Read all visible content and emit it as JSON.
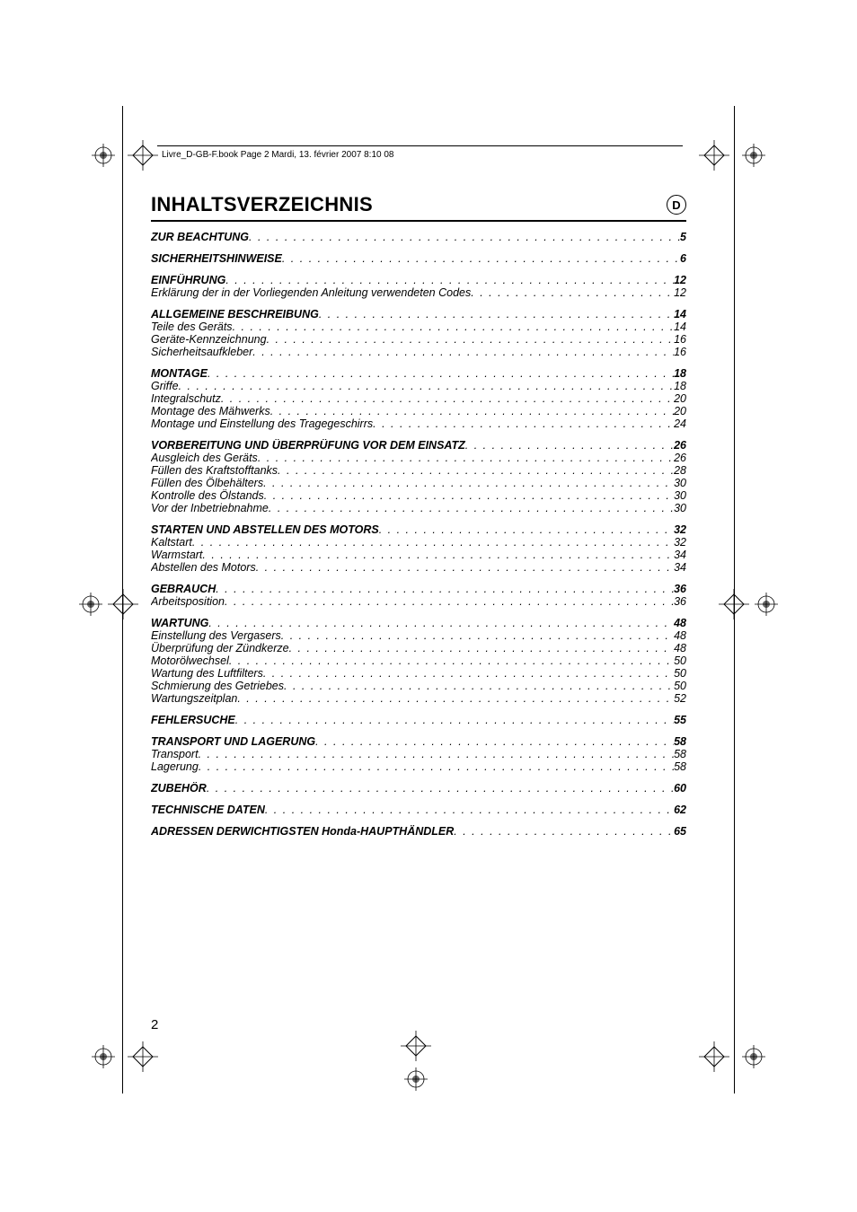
{
  "header": "Livre_D-GB-F.book  Page 2  Mardi, 13. février 2007  8:10 08",
  "title": "INHALTSVERZEICHNIS",
  "lang_code": "D",
  "page_number": "2",
  "toc": [
    {
      "heading": "ZUR BEACHTUNG",
      "page": "5",
      "subs": []
    },
    {
      "heading": "SICHERHEITSHINWEISE",
      "page": "6",
      "subs": []
    },
    {
      "heading": "EINFÜHRUNG",
      "page": "12",
      "subs": [
        {
          "label": "Erklärung der in der Vorliegenden Anleitung verwendeten Codes",
          "page": "12"
        }
      ]
    },
    {
      "heading": "ALLGEMEINE BESCHREIBUNG",
      "page": "14",
      "subs": [
        {
          "label": "Teile des Geräts",
          "page": "14"
        },
        {
          "label": "Geräte-Kennzeichnung",
          "page": "16"
        },
        {
          "label": "Sicherheitsaufkleber",
          "page": "16"
        }
      ]
    },
    {
      "heading": "MONTAGE",
      "page": "18",
      "subs": [
        {
          "label": "Griffe",
          "page": "18"
        },
        {
          "label": "Integralschutz",
          "page": "20"
        },
        {
          "label": "Montage des Mähwerks",
          "page": "20"
        },
        {
          "label": "Montage und Einstellung des Tragegeschirrs",
          "page": "24"
        }
      ]
    },
    {
      "heading": "VORBEREITUNG UND ÜBERPRÜFUNG VOR DEM EINSATZ",
      "page": "26",
      "subs": [
        {
          "label": "Ausgleich des Geräts",
          "page": "26"
        },
        {
          "label": "Füllen des Kraftstofftanks",
          "page": "28"
        },
        {
          "label": "Füllen des Ölbehälters",
          "page": "30"
        },
        {
          "label": "Kontrolle des Ölstands",
          "page": "30"
        },
        {
          "label": "Vor der Inbetriebnahme",
          "page": "30"
        }
      ]
    },
    {
      "heading": "STARTEN UND ABSTELLEN DES MOTORS",
      "page": "32",
      "subs": [
        {
          "label": "Kaltstart",
          "page": "32"
        },
        {
          "label": "Warmstart",
          "page": "34"
        },
        {
          "label": "Abstellen des Motors",
          "page": "34"
        }
      ]
    },
    {
      "heading": "GEBRAUCH",
      "page": "36",
      "subs": [
        {
          "label": "Arbeitsposition",
          "page": "36"
        }
      ]
    },
    {
      "heading": "WARTUNG",
      "page": "48",
      "subs": [
        {
          "label": "Einstellung des Vergasers",
          "page": "48"
        },
        {
          "label": "Überprüfung der Zündkerze",
          "page": "48"
        },
        {
          "label": "Motorölwechsel",
          "page": "50"
        },
        {
          "label": "Wartung des Luftfilters",
          "page": "50"
        },
        {
          "label": "Schmierung des Getriebes",
          "page": "50"
        },
        {
          "label": "Wartungszeitplan",
          "page": "52"
        }
      ]
    },
    {
      "heading": "FEHLERSUCHE",
      "page": "55",
      "subs": []
    },
    {
      "heading": "TRANSPORT UND LAGERUNG",
      "page": "58",
      "subs": [
        {
          "label": "Transport",
          "page": "58"
        },
        {
          "label": "Lagerung",
          "page": "58"
        }
      ]
    },
    {
      "heading": "ZUBEHÖR",
      "page": "60",
      "subs": []
    },
    {
      "heading": "TECHNISCHE DATEN",
      "page": "62",
      "subs": []
    },
    {
      "heading": "ADRESSEN DERWICHTIGSTEN Honda-HAUPTHÄNDLER",
      "page": "65",
      "subs": []
    }
  ]
}
